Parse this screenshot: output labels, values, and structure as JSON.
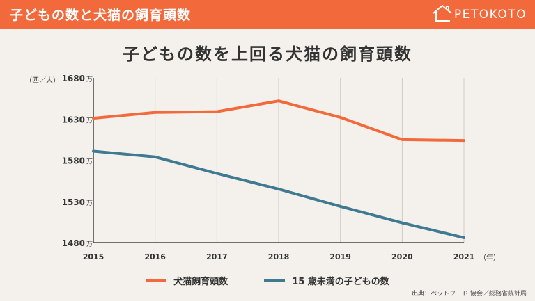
{
  "header": {
    "title": "子どもの数と犬猫の飼育頭数",
    "logo_text": "PETOKOTO"
  },
  "colors": {
    "header_bg": "#f26a3c",
    "dog_cat": "#f26a3c",
    "children": "#3f7a92",
    "axis": "#444444",
    "grid": "#cfcac3"
  },
  "chart_data": {
    "type": "line",
    "title": "子どもの数を上回る犬猫の飼育頭数",
    "y_unit_label": "（匹／人）",
    "x_unit_label": "（年）",
    "y_tick_suffix": "万",
    "categories": [
      "2015",
      "2016",
      "2017",
      "2018",
      "2019",
      "2020",
      "2021"
    ],
    "y_ticks": [
      "1680",
      "1630",
      "1580",
      "1530",
      "1480"
    ],
    "ylim": [
      1480,
      1680
    ],
    "grid": true,
    "legend_position": "bottom",
    "series": [
      {
        "name": "犬猫飼育頭数",
        "color": "#f26a3c",
        "values": [
          1631,
          1638,
          1639,
          1652,
          1632,
          1605,
          1604
        ]
      },
      {
        "name": "15 歳未満の子どもの数",
        "color": "#3f7a92",
        "values": [
          1591,
          1584,
          1564,
          1545,
          1524,
          1504,
          1486
        ]
      }
    ]
  },
  "source": "出典：ペットフード 協会／総務省統計局"
}
